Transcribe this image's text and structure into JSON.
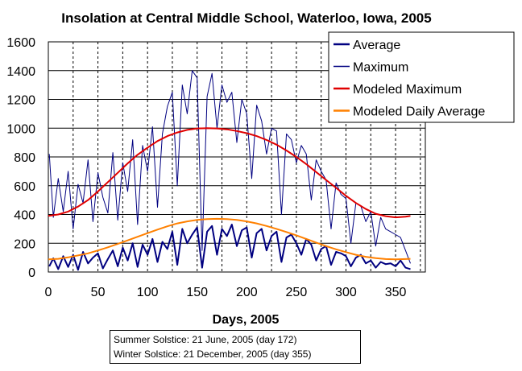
{
  "chart_data": {
    "type": "line",
    "title": "Insolation at Central Middle School, Waterloo, Iowa, 2005",
    "xlabel": "Days, 2005",
    "ylabel": "",
    "xlim": [
      0,
      380
    ],
    "ylim": [
      0,
      1600
    ],
    "x_ticks": [
      0,
      50,
      100,
      150,
      200,
      250,
      300,
      350
    ],
    "y_ticks": [
      0,
      200,
      400,
      600,
      800,
      1000,
      1200,
      1400,
      1600
    ],
    "legend_position": "top-right",
    "grid": "x-dashed-every-25-days, y-solid-every-200",
    "series": [
      {
        "name": "Average",
        "color": "#000080",
        "x": [
          1,
          5,
          10,
          15,
          20,
          25,
          30,
          35,
          40,
          45,
          50,
          55,
          60,
          65,
          70,
          75,
          80,
          85,
          90,
          95,
          100,
          105,
          110,
          115,
          120,
          125,
          130,
          135,
          140,
          145,
          150,
          155,
          160,
          165,
          170,
          175,
          180,
          185,
          190,
          195,
          200,
          205,
          210,
          215,
          220,
          225,
          230,
          235,
          240,
          245,
          250,
          255,
          260,
          265,
          270,
          275,
          280,
          285,
          290,
          295,
          300,
          305,
          310,
          315,
          320,
          325,
          330,
          335,
          340,
          345,
          350,
          355,
          360,
          365
        ],
        "values": [
          40,
          95,
          20,
          110,
          35,
          120,
          15,
          140,
          60,
          100,
          130,
          25,
          90,
          150,
          40,
          170,
          80,
          200,
          35,
          190,
          120,
          230,
          70,
          210,
          160,
          280,
          50,
          300,
          200,
          260,
          310,
          30,
          280,
          320,
          120,
          300,
          250,
          330,
          180,
          290,
          310,
          100,
          270,
          300,
          150,
          250,
          280,
          70,
          240,
          260,
          200,
          120,
          230,
          190,
          80,
          160,
          180,
          50,
          140,
          130,
          110,
          40,
          100,
          120,
          60,
          80,
          30,
          70,
          55,
          60,
          40,
          80,
          30,
          20
        ]
      },
      {
        "name": "Maximum",
        "color": "#000080",
        "x": [
          1,
          5,
          10,
          15,
          20,
          25,
          30,
          35,
          40,
          45,
          50,
          55,
          60,
          65,
          70,
          75,
          80,
          85,
          90,
          95,
          100,
          105,
          110,
          115,
          120,
          125,
          130,
          135,
          140,
          145,
          150,
          155,
          160,
          165,
          170,
          175,
          180,
          185,
          190,
          195,
          200,
          205,
          210,
          215,
          220,
          225,
          230,
          235,
          240,
          245,
          250,
          255,
          260,
          265,
          270,
          275,
          280,
          285,
          290,
          295,
          300,
          305,
          310,
          315,
          320,
          325,
          330,
          335,
          340,
          345,
          350,
          355,
          360,
          365
        ],
        "values": [
          820,
          380,
          650,
          420,
          700,
          300,
          610,
          480,
          780,
          350,
          690,
          520,
          410,
          830,
          360,
          760,
          560,
          920,
          330,
          880,
          700,
          1010,
          450,
          960,
          1150,
          1250,
          600,
          1300,
          1100,
          1400,
          1350,
          150,
          1220,
          1380,
          1000,
          1300,
          1180,
          1250,
          900,
          1200,
          1100,
          650,
          1160,
          1050,
          820,
          1000,
          980,
          400,
          960,
          920,
          760,
          880,
          820,
          500,
          780,
          700,
          640,
          300,
          620,
          540,
          510,
          200,
          480,
          460,
          350,
          420,
          180,
          380,
          300,
          280,
          260,
          240,
          150,
          60
        ]
      },
      {
        "name": "Modeled Maximum",
        "color": "#e00000",
        "x": [
          0,
          10,
          20,
          30,
          40,
          50,
          60,
          70,
          80,
          90,
          100,
          110,
          120,
          130,
          140,
          150,
          160,
          170,
          180,
          190,
          200,
          210,
          220,
          230,
          240,
          250,
          260,
          270,
          280,
          290,
          300,
          310,
          320,
          330,
          340,
          350,
          360,
          365
        ],
        "values": [
          390,
          400,
          420,
          455,
          500,
          560,
          625,
          690,
          755,
          815,
          865,
          910,
          945,
          970,
          988,
          998,
          1000,
          998,
          992,
          980,
          965,
          945,
          918,
          885,
          845,
          800,
          750,
          695,
          640,
          585,
          530,
          480,
          438,
          405,
          388,
          380,
          385,
          390
        ]
      },
      {
        "name": "Modeled Daily Average",
        "color": "#ff8000",
        "x": [
          0,
          10,
          20,
          30,
          40,
          50,
          60,
          70,
          80,
          90,
          100,
          110,
          120,
          130,
          140,
          150,
          160,
          170,
          180,
          190,
          200,
          210,
          220,
          230,
          240,
          250,
          260,
          270,
          280,
          290,
          300,
          310,
          320,
          330,
          340,
          350,
          360,
          365
        ],
        "values": [
          88,
          92,
          102,
          115,
          130,
          150,
          172,
          195,
          220,
          245,
          270,
          295,
          318,
          338,
          352,
          362,
          368,
          370,
          368,
          362,
          352,
          338,
          320,
          300,
          278,
          255,
          230,
          205,
          180,
          158,
          138,
          120,
          106,
          96,
          90,
          88,
          90,
          92
        ]
      }
    ]
  },
  "notes": {
    "summer": "Summer Solstice: 21 June, 2005 (day 172)",
    "winter": "Winter Solstice: 21 December, 2005 (day 355)"
  }
}
